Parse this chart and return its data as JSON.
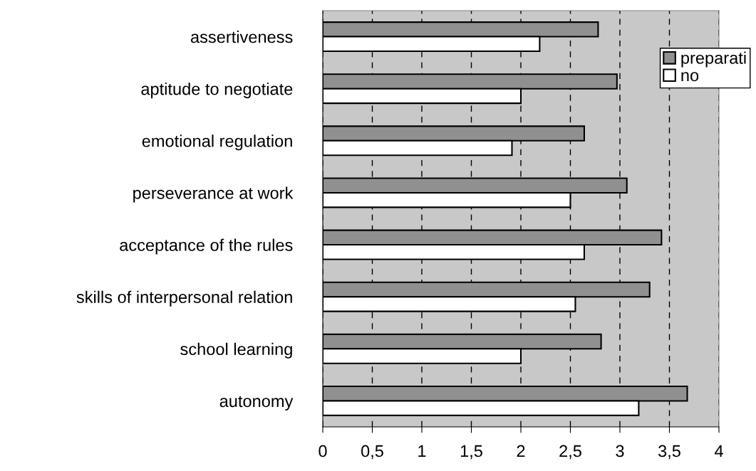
{
  "chart_data": {
    "type": "bar",
    "orientation": "horizontal",
    "categories": [
      "assertiveness",
      "aptitude to negotiate",
      "emotional regulation",
      "perseverance at work",
      "acceptance of the rules",
      "skills of interpersonal relation",
      "school learning",
      "autonomy"
    ],
    "series": [
      {
        "name": "preparati",
        "color": "#909090",
        "values": [
          2.78,
          2.97,
          2.64,
          3.07,
          3.42,
          3.3,
          2.81,
          3.68
        ]
      },
      {
        "name": "no",
        "color": "#ffffff",
        "values": [
          2.19,
          2.0,
          1.91,
          2.5,
          2.64,
          2.55,
          2.0,
          3.19
        ]
      }
    ],
    "xlim": [
      0,
      4
    ],
    "xticks": [
      0,
      {
        "value": 0.5,
        "label": "0,5"
      },
      1,
      {
        "value": 1.5,
        "label": "1,5"
      },
      2,
      {
        "value": 2.5,
        "label": "2,5"
      },
      3,
      {
        "value": 3.5,
        "label": "3,5"
      },
      4
    ],
    "grid": "x",
    "legend": "top right"
  }
}
